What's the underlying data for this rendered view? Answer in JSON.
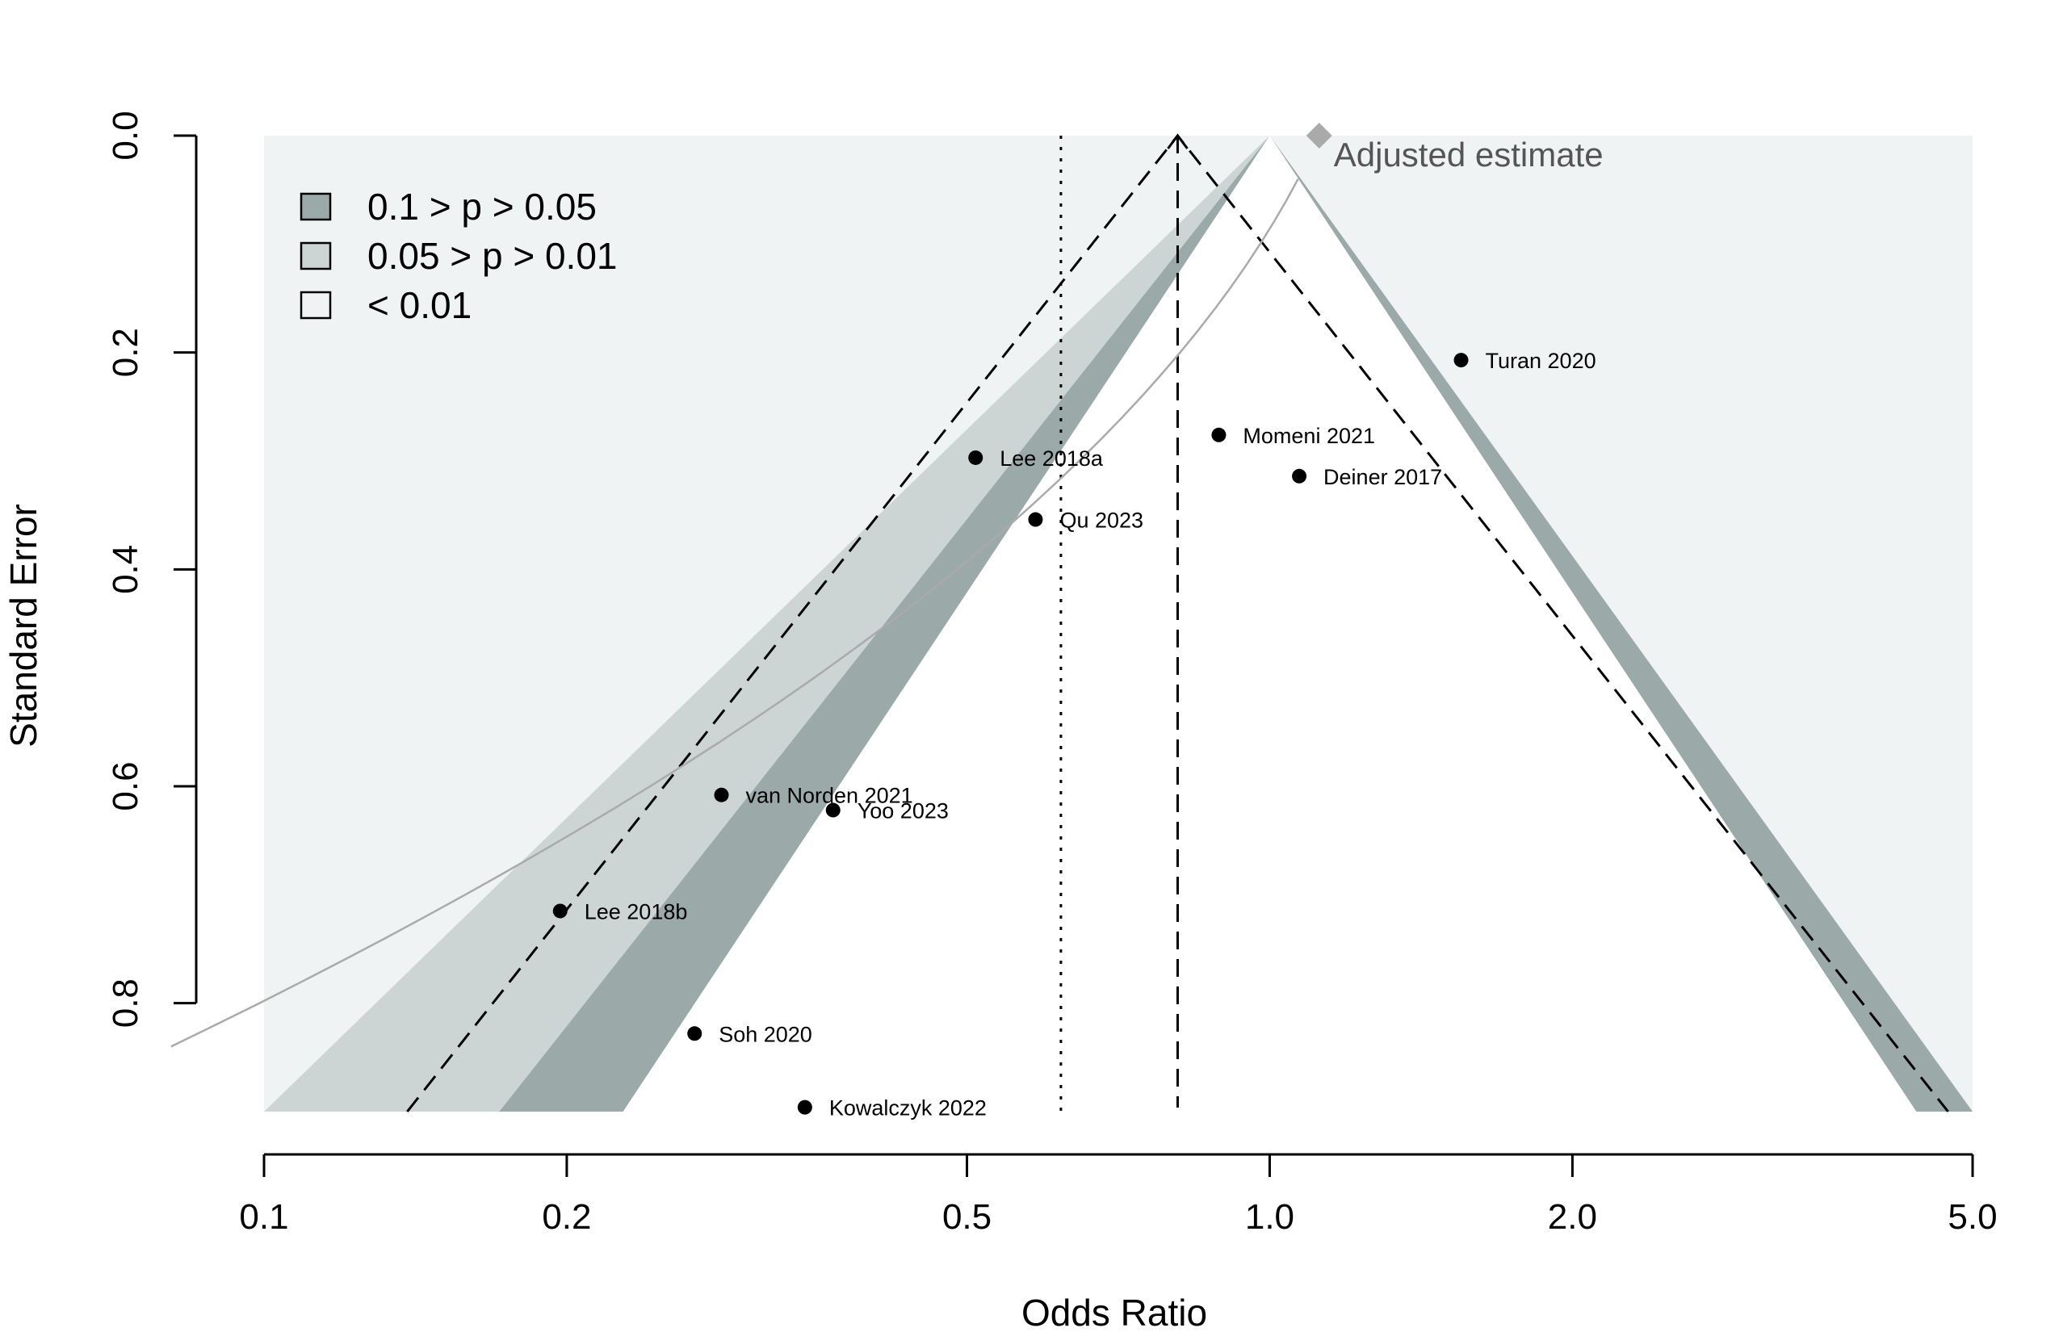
{
  "chart_data": {
    "type": "scatter",
    "subtype": "contour-enhanced funnel plot (trim-and-fill)",
    "xlabel": "Odds Ratio",
    "ylabel": "Standard Error",
    "x_scale": "log",
    "y_reversed": true,
    "xlim": [
      0.1,
      5.0
    ],
    "ylim": [
      0.0,
      0.9
    ],
    "x_ticks": [
      "0.1",
      "0.2",
      "0.5",
      "1.0",
      "2.0",
      "5.0"
    ],
    "x_tick_values": [
      0.1,
      0.2,
      0.5,
      1.0,
      2.0,
      5.0
    ],
    "y_ticks": [
      "0.0",
      "0.2",
      "0.4",
      "0.6",
      "0.8"
    ],
    "y_tick_values": [
      0.0,
      0.2,
      0.4,
      0.6,
      0.8
    ],
    "pooled_estimate_or": 0.81,
    "adjusted_reference_or": 0.62,
    "adjusted_estimate": {
      "label": "Adjusted estimate",
      "or": 1.12,
      "se": 0.0
    },
    "studies": [
      {
        "label": "Turan 2020",
        "or": 1.55,
        "se": 0.207
      },
      {
        "label": "Momeni 2021",
        "or": 0.89,
        "se": 0.276
      },
      {
        "label": "Deiner 2017",
        "or": 1.07,
        "se": 0.314
      },
      {
        "label": "Lee 2018a",
        "or": 0.51,
        "se": 0.297
      },
      {
        "label": "Qu 2023",
        "or": 0.585,
        "se": 0.354
      },
      {
        "label": "van Norden 2021",
        "or": 0.285,
        "se": 0.608
      },
      {
        "label": "Yoo 2023",
        "or": 0.368,
        "se": 0.622
      },
      {
        "label": "Lee 2018b",
        "or": 0.197,
        "se": 0.715
      },
      {
        "label": "Soh 2020",
        "or": 0.268,
        "se": 0.828
      },
      {
        "label": "Kowalczyk 2022",
        "or": 0.345,
        "se": 0.896
      }
    ],
    "legend": {
      "position": "top-left",
      "items": [
        {
          "label": "0.1 > p > 0.05",
          "color": "#9ba9a8"
        },
        {
          "label": "0.05 > p > 0.01",
          "color": "#cdd5d4"
        },
        {
          "label": "< 0.01",
          "color": "#f0f3f3"
        }
      ]
    },
    "colors": {
      "background_region": "#f0f3f3",
      "band_p01": "#cdd5d4",
      "band_p05": "#9ba9a8",
      "adjusted_marker": "#aaaaaa",
      "curve": "#aaaaaa"
    }
  }
}
